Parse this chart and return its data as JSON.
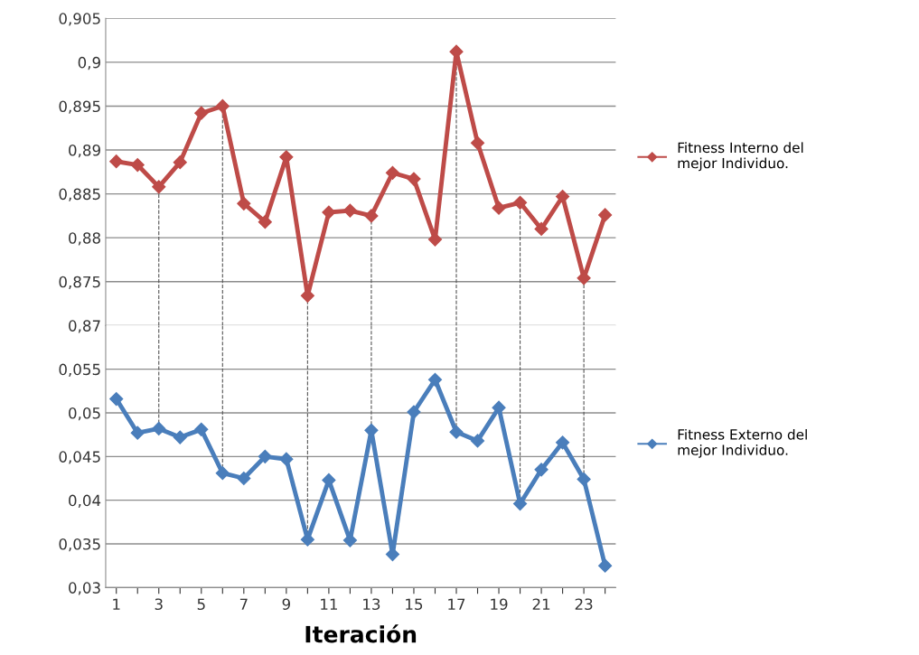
{
  "chart_data": [
    {
      "type": "line",
      "x": [
        1,
        2,
        3,
        4,
        5,
        6,
        7,
        8,
        9,
        10,
        11,
        12,
        13,
        14,
        15,
        16,
        17,
        18,
        19,
        20,
        21,
        22,
        23,
        24
      ],
      "series": [
        {
          "name": "Fitness Interno del\nmejor Individuo.",
          "color": "#be4b48",
          "values": [
            0.8887,
            0.8883,
            0.8858,
            0.8886,
            0.8942,
            0.895,
            0.8839,
            0.8818,
            0.8892,
            0.8734,
            0.8829,
            0.8831,
            0.8825,
            0.8874,
            0.8867,
            0.8798,
            0.9012,
            0.8908,
            0.8834,
            0.884,
            0.881,
            0.8847,
            0.8754,
            0.8826
          ]
        }
      ],
      "xlim": [
        0.5,
        24.5
      ],
      "ylim": [
        0.87,
        0.905
      ],
      "yticks": [
        {
          "value": 0.87,
          "label": "0,87"
        },
        {
          "value": 0.875,
          "label": "0,875"
        },
        {
          "value": 0.88,
          "label": "0,88"
        },
        {
          "value": 0.885,
          "label": "0,885"
        },
        {
          "value": 0.89,
          "label": "0,89"
        },
        {
          "value": 0.895,
          "label": "0,895"
        },
        {
          "value": 0.9,
          "label": "0,9"
        },
        {
          "value": 0.905,
          "label": "0,905"
        }
      ],
      "tick_labels": "y",
      "grid": "y",
      "legend": "right",
      "marker": "diamond",
      "line_style": "solid",
      "ref_lines": [
        {
          "axis": "x",
          "value": 3,
          "line_style": "dashed",
          "color": "#555555"
        },
        {
          "axis": "x",
          "value": 6,
          "line_style": "dashed",
          "color": "#555555"
        },
        {
          "axis": "x",
          "value": 10,
          "line_style": "dashed",
          "color": "#555555"
        },
        {
          "axis": "x",
          "value": 13,
          "line_style": "dashed",
          "color": "#555555"
        },
        {
          "axis": "x",
          "value": 17,
          "line_style": "dashed",
          "color": "#555555"
        },
        {
          "axis": "x",
          "value": 20,
          "line_style": "dashed",
          "color": "#555555"
        },
        {
          "axis": "x",
          "value": 23,
          "line_style": "dashed",
          "color": "#555555"
        }
      ]
    },
    {
      "type": "line",
      "x": [
        1,
        2,
        3,
        4,
        5,
        6,
        7,
        8,
        9,
        10,
        11,
        12,
        13,
        14,
        15,
        16,
        17,
        18,
        19,
        20,
        21,
        22,
        23,
        24
      ],
      "xlabel": "Iteración",
      "series": [
        {
          "name": "Fitness Externo del\nmejor Individuo.",
          "color": "#4a7ebb",
          "values": [
            0.0516,
            0.0477,
            0.0482,
            0.0472,
            0.0481,
            0.0431,
            0.0425,
            0.045,
            0.0447,
            0.0355,
            0.0423,
            0.0354,
            0.048,
            0.0338,
            0.0501,
            0.0538,
            0.0478,
            0.0468,
            0.0506,
            0.0396,
            0.0435,
            0.0466,
            0.0424,
            0.0325
          ]
        }
      ],
      "xlim": [
        0.5,
        24.5
      ],
      "xticks": [
        1,
        {
          "value": 2,
          "label": null
        },
        3,
        {
          "value": 4,
          "label": null
        },
        5,
        {
          "value": 6,
          "label": null
        },
        7,
        {
          "value": 8,
          "label": null
        },
        9,
        {
          "value": 10,
          "label": null
        },
        11,
        {
          "value": 12,
          "label": null
        },
        13,
        {
          "value": 14,
          "label": null
        },
        15,
        {
          "value": 16,
          "label": null
        },
        17,
        {
          "value": 18,
          "label": null
        },
        19,
        {
          "value": 20,
          "label": null
        },
        21,
        {
          "value": 22,
          "label": null
        },
        23,
        {
          "value": 24,
          "label": null
        }
      ],
      "ylim": [
        0.03,
        0.06
      ],
      "yticks": [
        {
          "value": 0.03,
          "label": "0,03"
        },
        {
          "value": 0.035,
          "label": "0,035"
        },
        {
          "value": 0.04,
          "label": "0,04"
        },
        {
          "value": 0.045,
          "label": "0,045"
        },
        {
          "value": 0.05,
          "label": "0,05"
        },
        {
          "value": 0.055,
          "label": "0,055"
        }
      ],
      "grid": "y",
      "legend": "right",
      "marker": "diamond",
      "line_style": "solid",
      "ref_lines": [
        {
          "axis": "x",
          "value": 3,
          "line_style": "dashed",
          "color": "#555555"
        },
        {
          "axis": "x",
          "value": 6,
          "line_style": "dashed",
          "color": "#555555"
        },
        {
          "axis": "x",
          "value": 10,
          "line_style": "dashed",
          "color": "#555555"
        },
        {
          "axis": "x",
          "value": 13,
          "line_style": "dashed",
          "color": "#555555"
        },
        {
          "axis": "x",
          "value": 17,
          "line_style": "dashed",
          "color": "#555555"
        },
        {
          "axis": "x",
          "value": 20,
          "line_style": "dashed",
          "color": "#555555"
        },
        {
          "axis": "x",
          "value": 23,
          "line_style": "dashed",
          "color": "#555555"
        }
      ]
    }
  ]
}
